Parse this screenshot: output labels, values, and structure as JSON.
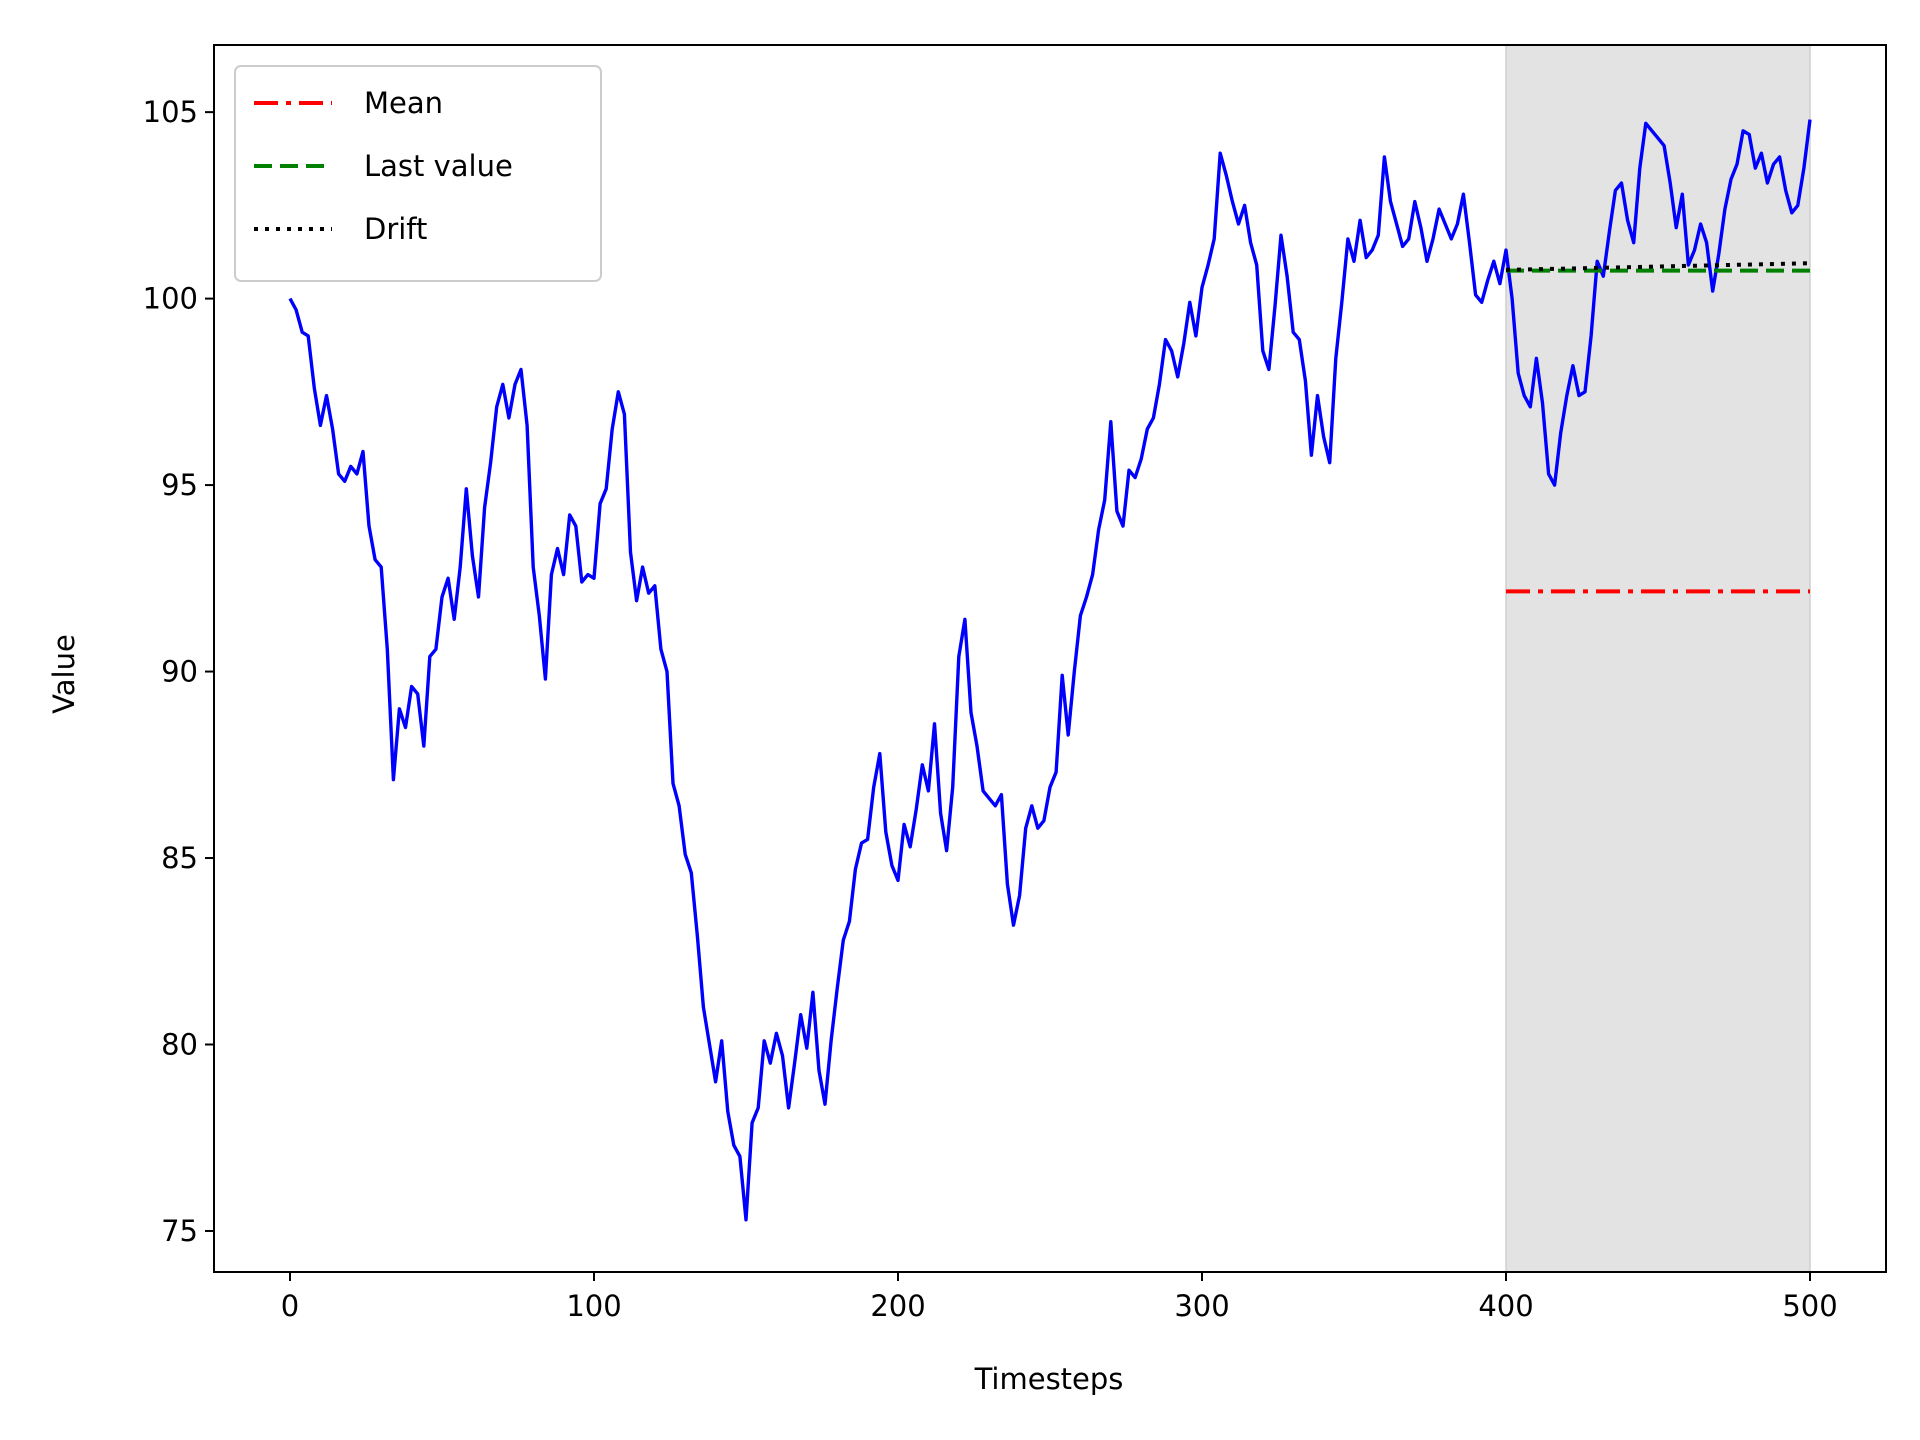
{
  "chart_data": {
    "type": "line",
    "title": "",
    "xlabel": "Timesteps",
    "ylabel": "Value",
    "xlim": [
      -25,
      525
    ],
    "ylim": [
      73.9,
      106.8
    ],
    "xticks": [
      0,
      100,
      200,
      300,
      400,
      500
    ],
    "yticks": [
      75,
      80,
      85,
      90,
      95,
      100,
      105
    ],
    "grid": false,
    "legend_position": "top-left",
    "shaded_region": {
      "x_start": 400,
      "x_end": 500,
      "color": "#e3e3e3"
    },
    "series": [
      {
        "name": "",
        "color": "#0000ff",
        "style": "solid",
        "x": [
          0,
          2,
          4,
          6,
          8,
          10,
          12,
          14,
          16,
          18,
          20,
          22,
          24,
          26,
          28,
          30,
          32,
          34,
          36,
          38,
          40,
          42,
          44,
          46,
          48,
          50,
          52,
          54,
          56,
          58,
          60,
          62,
          64,
          66,
          68,
          70,
          72,
          74,
          76,
          78,
          80,
          82,
          84,
          86,
          88,
          90,
          92,
          94,
          96,
          98,
          100,
          102,
          104,
          106,
          108,
          110,
          112,
          114,
          116,
          118,
          120,
          122,
          124,
          126,
          128,
          130,
          132,
          134,
          136,
          138,
          140,
          142,
          144,
          146,
          148,
          150,
          152,
          154,
          156,
          158,
          160,
          162,
          164,
          166,
          168,
          170,
          172,
          174,
          176,
          178,
          180,
          182,
          184,
          186,
          188,
          190,
          192,
          194,
          196,
          198,
          200,
          202,
          204,
          206,
          208,
          210,
          212,
          214,
          216,
          218,
          220,
          222,
          224,
          226,
          228,
          230,
          232,
          234,
          236,
          238,
          240,
          242,
          244,
          246,
          248,
          250,
          252,
          254,
          256,
          258,
          260,
          262,
          264,
          266,
          268,
          270,
          272,
          274,
          276,
          278,
          280,
          282,
          284,
          286,
          288,
          290,
          292,
          294,
          296,
          298,
          300,
          302,
          304,
          306,
          308,
          310,
          312,
          314,
          316,
          318,
          320,
          322,
          324,
          326,
          328,
          330,
          332,
          334,
          336,
          338,
          340,
          342,
          344,
          346,
          348,
          350,
          352,
          354,
          356,
          358,
          360,
          362,
          364,
          366,
          368,
          370,
          372,
          374,
          376,
          378,
          380,
          382,
          384,
          386,
          388,
          390,
          392,
          394,
          396,
          398,
          400,
          402,
          404,
          406,
          408,
          410,
          412,
          414,
          416,
          418,
          420,
          422,
          424,
          426,
          428,
          430,
          432,
          434,
          436,
          438,
          440,
          442,
          444,
          446,
          448,
          450,
          452,
          454,
          456,
          458,
          460,
          462,
          464,
          466,
          468,
          470,
          472,
          474,
          476,
          478,
          480,
          482,
          484,
          486,
          488,
          490,
          492,
          494,
          496,
          498,
          500
        ],
        "values": [
          100.0,
          99.7,
          99.1,
          99.0,
          97.6,
          96.6,
          97.4,
          96.5,
          95.3,
          95.1,
          95.5,
          95.3,
          95.9,
          93.9,
          93.0,
          92.8,
          90.6,
          87.1,
          89.0,
          88.5,
          89.6,
          89.4,
          88.0,
          90.4,
          90.6,
          92.0,
          92.5,
          91.4,
          92.8,
          94.9,
          93.1,
          92.0,
          94.4,
          95.6,
          97.1,
          97.7,
          96.8,
          97.7,
          98.1,
          96.6,
          92.8,
          91.5,
          89.8,
          92.6,
          93.3,
          92.6,
          94.2,
          93.9,
          92.4,
          92.6,
          92.5,
          94.5,
          94.9,
          96.5,
          97.5,
          96.9,
          93.2,
          91.9,
          92.8,
          92.1,
          92.3,
          90.6,
          90.0,
          87.0,
          86.4,
          85.1,
          84.6,
          82.9,
          81.0,
          80.0,
          79.0,
          80.1,
          78.2,
          77.3,
          77.0,
          75.3,
          77.9,
          78.3,
          80.1,
          79.5,
          80.3,
          79.7,
          78.3,
          79.5,
          80.8,
          79.9,
          81.4,
          79.3,
          78.4,
          80.1,
          81.5,
          82.8,
          83.3,
          84.7,
          85.4,
          85.5,
          86.9,
          87.8,
          85.7,
          84.8,
          84.4,
          85.9,
          85.3,
          86.3,
          87.5,
          86.8,
          88.6,
          86.2,
          85.2,
          86.9,
          90.4,
          91.4,
          88.9,
          88.0,
          86.8,
          86.6,
          86.4,
          86.7,
          84.3,
          83.2,
          84.0,
          85.8,
          86.4,
          85.8,
          86.0,
          86.9,
          87.3,
          89.9,
          88.3,
          90.0,
          91.5,
          92.0,
          92.6,
          93.8,
          94.6,
          96.7,
          94.3,
          93.9,
          95.4,
          95.2,
          95.7,
          96.5,
          96.8,
          97.7,
          98.9,
          98.6,
          97.9,
          98.8,
          99.9,
          99.0,
          100.3,
          100.9,
          101.6,
          103.9,
          103.3,
          102.6,
          102.0,
          102.5,
          101.5,
          100.9,
          98.6,
          98.1,
          99.8,
          101.7,
          100.6,
          99.1,
          98.9,
          97.8,
          95.8,
          97.4,
          96.3,
          95.6,
          98.4,
          99.9,
          101.6,
          101.0,
          102.1,
          101.1,
          101.3,
          101.7,
          103.8,
          102.6,
          102.0,
          101.4,
          101.6,
          102.6,
          101.9,
          101.0,
          101.6,
          102.4,
          102.0,
          101.6,
          102.0,
          102.8,
          101.5,
          100.1,
          99.9,
          100.5,
          101.0,
          100.4,
          101.3,
          100.0,
          98.0,
          97.4,
          97.1,
          98.4,
          97.2,
          95.3,
          95.0,
          96.4,
          97.4,
          98.2,
          97.4,
          97.5,
          99.0,
          101.0,
          100.6,
          101.8,
          102.9,
          103.1,
          102.1,
          101.5,
          103.5,
          104.7,
          104.5,
          104.3,
          104.1,
          103.1,
          101.9,
          102.8,
          100.9,
          101.3,
          102.0,
          101.5,
          100.2,
          101.2,
          102.4,
          103.2,
          103.6,
          104.5,
          104.4,
          103.5,
          103.9,
          103.1,
          103.6,
          103.8,
          102.9,
          102.3,
          102.5,
          103.5,
          104.8
        ]
      },
      {
        "name": "Mean",
        "color": "#ff0000",
        "style": "dashdot",
        "x": [
          400,
          500
        ],
        "values": [
          92.15,
          92.15
        ]
      },
      {
        "name": "Last value",
        "color": "#008000",
        "style": "dashed",
        "x": [
          400,
          500
        ],
        "values": [
          100.75,
          100.75
        ]
      },
      {
        "name": "Drift",
        "color": "#000000",
        "style": "dotted",
        "x": [
          400,
          500
        ],
        "values": [
          100.77,
          100.95
        ]
      }
    ]
  }
}
